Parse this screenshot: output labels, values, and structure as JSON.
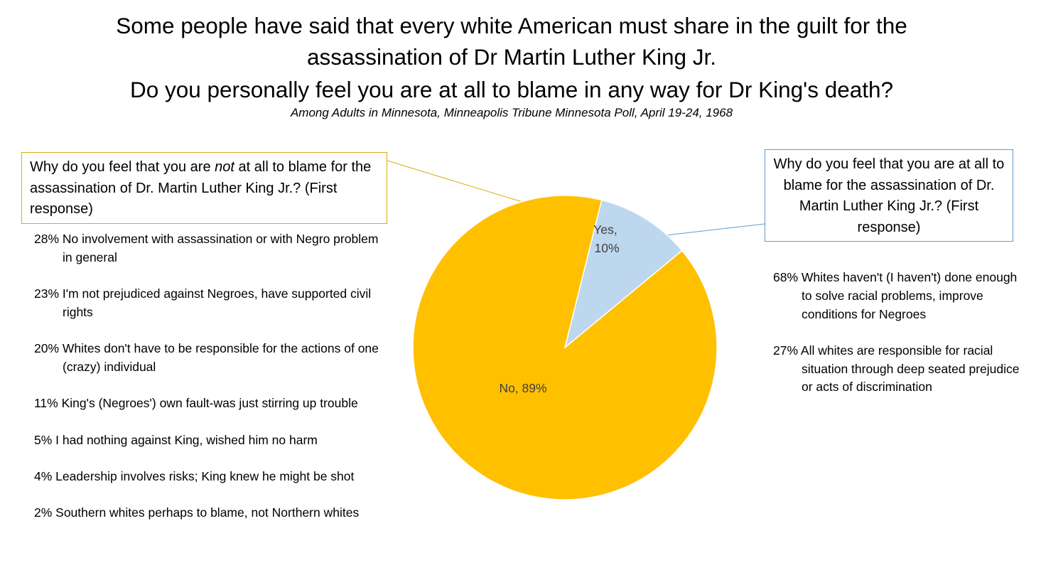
{
  "title": {
    "line1": "Some people have said that every white American must share in the guilt for the",
    "line2": "assassination of Dr Martin Luther King Jr.",
    "line3": "Do you personally feel you are at all to blame in any way for Dr King's death?"
  },
  "subtitle": "Among Adults in Minnesota, Minneapolis Tribune Minnesota Poll, April 19-24, 1968",
  "chart_data": {
    "type": "pie",
    "title": "Do you personally feel you are at all to blame in any way for Dr King's death?",
    "slices": [
      {
        "label": "Yes",
        "value": 10,
        "value_label": "10%",
        "color": "#bdd7ee"
      },
      {
        "label": "No",
        "value": 89,
        "value_label": "89%",
        "color": "#ffc000"
      }
    ],
    "start_angle_deg": 14,
    "legend": "none"
  },
  "callout_no": {
    "text_before": "Why do you feel that you are ",
    "text_emphasis": "not",
    "text_after": " at all to blame for the assassination of Dr. Martin Luther King Jr.? (First response)",
    "border_color": "#dcac10"
  },
  "callout_yes": {
    "text": "Why do you feel that you are at all to blame for the assassination of Dr. Martin Luther King Jr.? (First response)",
    "border_color": "#5b9bd5"
  },
  "reasons_no": [
    "28% No involvement with assassination or with Negro problem in general",
    "23% I'm not prejudiced against Negroes, have supported civil rights",
    "20% Whites don't have to be responsible for the actions of one (crazy) individual",
    "11% King's (Negroes') own fault-was just stirring up trouble",
    "5% I had nothing against King, wished him no harm",
    "4% Leadership involves risks; King knew he might be shot",
    "2% Southern whites perhaps to blame, not Northern whites"
  ],
  "reasons_yes": [
    "68% Whites haven't (I haven't) done enough to solve racial problems, improve conditions for Negroes",
    "27% All whites are responsible for racial situation through deep seated prejudice or acts of discrimination"
  ]
}
